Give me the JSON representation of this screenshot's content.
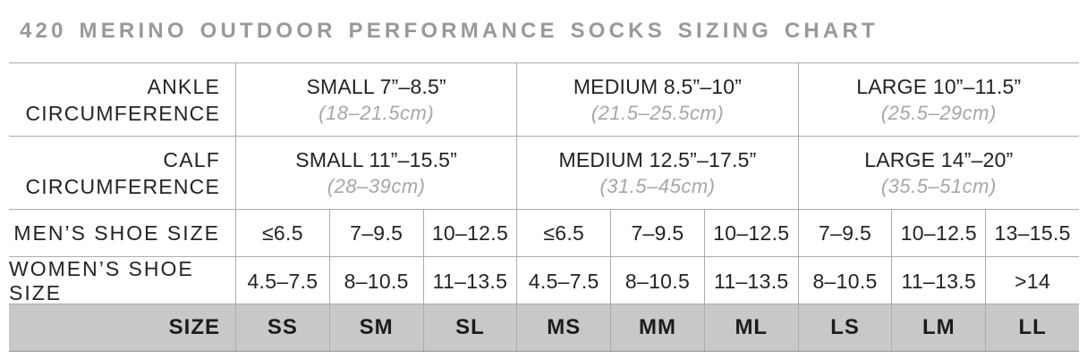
{
  "colors": {
    "title_text": "#97999b",
    "border": "#aaacae",
    "body_text": "#232325",
    "metric_text": "#a5a7aa",
    "size_row_bg": "#c7c8ca",
    "size_row_border": "#919396"
  },
  "chart_data": {
    "type": "table",
    "title": "420 MERINO OUTDOOR PERFORMANCE SOCKS SIZING CHART",
    "measure_rows": [
      {
        "label_line1": "ANKLE",
        "label_line2": "CIRCUMFERENCE",
        "groups": [
          {
            "imperial": "SMALL 7”–8.5”",
            "metric": "(18–21.5cm)"
          },
          {
            "imperial": "MEDIUM 8.5”–10”",
            "metric": "(21.5–25.5cm)"
          },
          {
            "imperial": "LARGE 10”–11.5”",
            "metric": "(25.5–29cm)"
          }
        ]
      },
      {
        "label_line1": "CALF",
        "label_line2": "CIRCUMFERENCE",
        "groups": [
          {
            "imperial": "SMALL 11”–15.5”",
            "metric": "(28–39cm)"
          },
          {
            "imperial": "MEDIUM 12.5”–17.5”",
            "metric": "(31.5–45cm)"
          },
          {
            "imperial": "LARGE 14”–20”",
            "metric": "(35.5–51cm)"
          }
        ]
      }
    ],
    "shoe_rows": [
      {
        "label": "MEN’S SHOE SIZE",
        "values": [
          "≤6.5",
          "7–9.5",
          "10–12.5",
          "≤6.5",
          "7–9.5",
          "10–12.5",
          "7–9.5",
          "10–12.5",
          "13–15.5"
        ]
      },
      {
        "label": "WOMEN’S SHOE SIZE",
        "values": [
          "4.5–7.5",
          "8–10.5",
          "11–13.5",
          "4.5–7.5",
          "8–10.5",
          "11–13.5",
          "8–10.5",
          "11–13.5",
          ">14"
        ]
      }
    ],
    "size_row": {
      "label": "SIZE",
      "values": [
        "SS",
        "SM",
        "SL",
        "MS",
        "MM",
        "ML",
        "LS",
        "LM",
        "LL"
      ]
    }
  }
}
